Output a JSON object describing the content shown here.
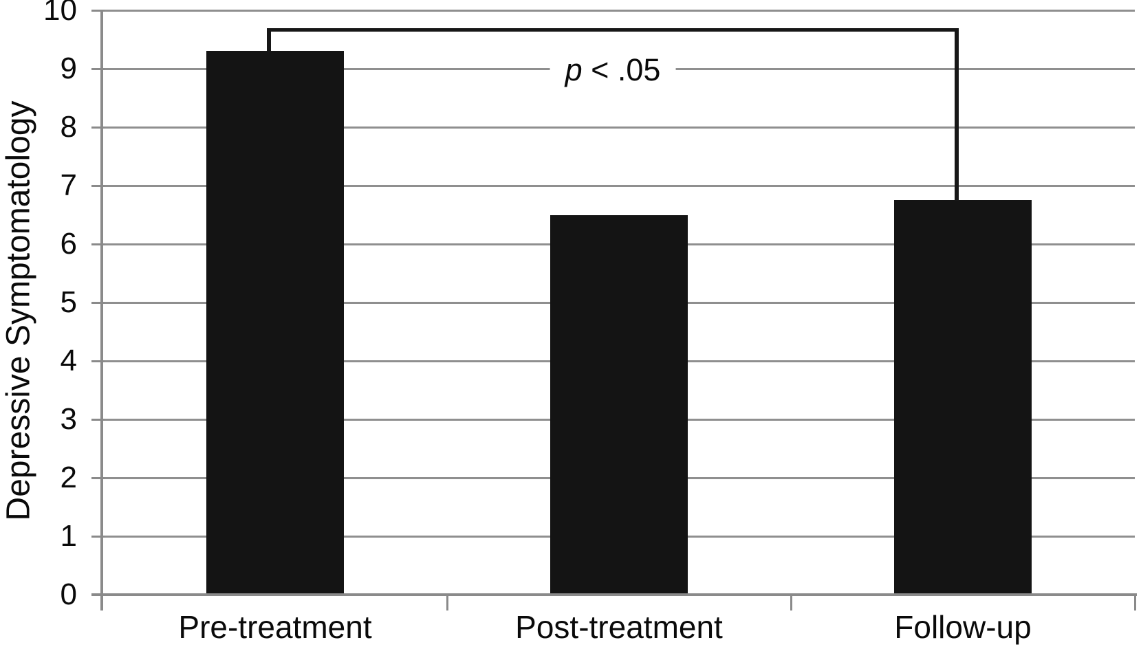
{
  "figure": {
    "background": "#ffffff"
  },
  "chart_data": {
    "type": "bar",
    "categories": [
      "Pre-treatment",
      "Post-treatment",
      "Follow-up"
    ],
    "values": [
      9.3,
      6.5,
      6.75
    ],
    "title": "",
    "xlabel": "",
    "ylabel": "Depressive Symptomatology",
    "ylim": [
      0,
      10
    ],
    "yticks": [
      0,
      1,
      2,
      3,
      4,
      5,
      6,
      7,
      8,
      9,
      10
    ],
    "grid": "horizontal",
    "legend": "none",
    "colors": {
      "bar": "#141414",
      "gridline": "#8f8f8f",
      "axis": "#8a8a8a",
      "bracket": "#171717",
      "text": "#0a0a0a"
    },
    "significance": {
      "label": "p < .05",
      "label_italic": "p",
      "label_rest": " < .05",
      "from": "Pre-treatment",
      "to": "Follow-up",
      "bracket_height": 9.7
    }
  }
}
